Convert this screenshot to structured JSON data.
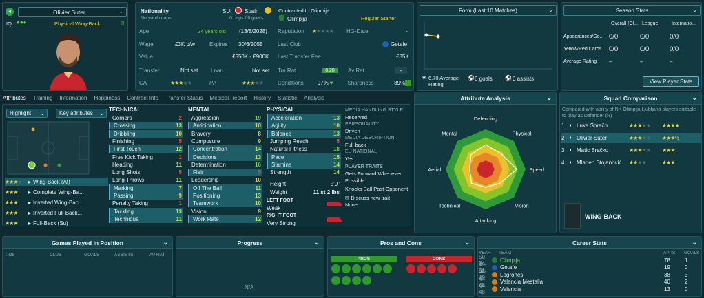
{
  "player": {
    "name": "Olivier Suter",
    "iq": "IQ:",
    "role": "Physical Wing-Back"
  },
  "info": {
    "nationality_label": "Nationality",
    "nationality_val": "SUI",
    "nationality_val2": "Spain",
    "caps": "No youth caps",
    "caps2": "0 caps / 0 goals",
    "contracted_label": "Contracted to Olimpija",
    "club": "Olimpija",
    "status": "Regular Starter",
    "age_label": "Age",
    "age_val": "24 years old",
    "age_date": "(13/8/2028)",
    "reputation_label": "Reputation",
    "hg_label": "HG-Date",
    "hg_val": "-",
    "wage_label": "Wage",
    "wage_val": "£3K p/w",
    "expires_label": "Expires",
    "expires_val": "30/6/2055",
    "lastclub_label": "Last Club",
    "lastclub_val": "Getafe",
    "value_label": "Value",
    "value_val": "£550K - £900K",
    "fee_label": "Last Transfer Fee",
    "fee_val": "£85K",
    "transfer_label": "Transfer",
    "transfer_val": "Not set",
    "loan_label": "Loan",
    "loan_val": "Not set",
    "trmrat_label": "Trn Rat",
    "trmrat_val": "8.28",
    "avrat_label": "Av Rat",
    "avrat_val": "-",
    "ca_label": "CA",
    "pa_label": "PA",
    "cond_label": "Conditions",
    "cond_val": "97%",
    "sharp_label": "Sharpness",
    "sharp_val": "89%"
  },
  "form": {
    "title": "Form (Last 10 Matches)",
    "avg": "6.70 Average Rating",
    "goals": "0 goals",
    "assists": "0 assists"
  },
  "season": {
    "title": "Season Stats",
    "cols": [
      "Overall (Cl...",
      "League",
      "Internatio..."
    ],
    "rows": [
      {
        "label": "Appearances/Go...",
        "v": [
          "0/0",
          "0/0",
          "0/0"
        ]
      },
      {
        "label": "Yellow/Red Cards",
        "v": [
          "0/0",
          "0/0",
          "0/0"
        ]
      },
      {
        "label": "Average Rating",
        "v": [
          "–",
          "–",
          "–"
        ]
      }
    ],
    "button": "View Player Stats"
  },
  "tabs": [
    "Attributes",
    "Training",
    "Information",
    "Happiness",
    "Contract Info",
    "Transfer Status",
    "Medical Report",
    "History",
    "Statistic",
    "Analysis"
  ],
  "left": {
    "highlight": "Highlight",
    "keyattr": "Key attributes",
    "roles": [
      {
        "name": "Wing-Back (At)"
      },
      {
        "name": "Complete Wing-Ba..."
      },
      {
        "name": "Inverted Wing-Bac..."
      },
      {
        "name": "Inverted Full-Back..."
      },
      {
        "name": "Full-Back (Su)"
      }
    ]
  },
  "technical": {
    "title": "TECHNICAL",
    "items": [
      [
        "Corners",
        "2"
      ],
      [
        "Crossing",
        "13"
      ],
      [
        "Dribbling",
        "10"
      ],
      [
        "Finishing",
        "5"
      ],
      [
        "First Touch",
        "12"
      ],
      [
        "Free Kick Taking",
        "1"
      ],
      [
        "Heading",
        "11"
      ],
      [
        "Long Shots",
        "5"
      ],
      [
        "Long Throws",
        "11"
      ],
      [
        "Marking",
        "7"
      ],
      [
        "Passing",
        "9"
      ],
      [
        "Penalty Taking",
        "1"
      ],
      [
        "Tackling",
        "13"
      ],
      [
        "Technique",
        "11"
      ]
    ]
  },
  "mental": {
    "title": "MENTAL",
    "items": [
      [
        "Aggression",
        "19"
      ],
      [
        "Anticipation",
        "10"
      ],
      [
        "Bravery",
        "8"
      ],
      [
        "Composure",
        "9"
      ],
      [
        "Concentration",
        "14"
      ],
      [
        "Decisions",
        "13"
      ],
      [
        "Determination",
        "16"
      ],
      [
        "Flair",
        "5"
      ],
      [
        "Leadership",
        "10"
      ],
      [
        "Off The Ball",
        "11"
      ],
      [
        "Positioning",
        "13"
      ],
      [
        "Teamwork",
        "10"
      ],
      [
        "Vision",
        "9"
      ],
      [
        "Work Rate",
        "12"
      ]
    ]
  },
  "physical": {
    "title": "PHYSICAL",
    "items": [
      [
        "Acceleration",
        "13"
      ],
      [
        "Agility",
        "10"
      ],
      [
        "Balance",
        "13"
      ],
      [
        "Jumping Reach",
        "5"
      ],
      [
        "Natural Fitness",
        "18"
      ],
      [
        "Pace",
        "15"
      ],
      [
        "Stamina",
        "14"
      ],
      [
        "Strength",
        "14"
      ]
    ],
    "height_label": "Height",
    "height_val": "5'9\"",
    "weight_label": "Weight",
    "weight_val": "11 st 2 lbs",
    "leftfoot_label": "LEFT FOOT",
    "leftfoot_val": "Weak",
    "rightfoot_label": "RIGHT FOOT",
    "rightfoot_val": "Very Strong"
  },
  "media": {
    "style_label": "MEDIA HANDLING STYLE",
    "style_val": "Reserved",
    "pers_label": "PERSONALITY",
    "pers_val": "Driven",
    "desc_label": "MEDIA DESCRIPTION",
    "desc_val": "Full-back",
    "eu_label": "EU NATIONAL",
    "eu_val": "Yes",
    "traits_label": "PLAYER TRAITS",
    "traits": [
      "Gets Forward Whenever Possible",
      "Knocks Ball Past Opponent"
    ],
    "discuss": "Discuss new trait",
    "none": "None"
  },
  "analysis": {
    "title": "Attribute Analysis",
    "axes": [
      "Defending",
      "Physical",
      "Speed",
      "Vision",
      "Attacking",
      "Technical",
      "Aerial",
      "Mental"
    ],
    "values": [
      0.62,
      0.55,
      0.78,
      0.5,
      0.45,
      0.5,
      0.4,
      0.52
    ]
  },
  "squad": {
    "title": "Squad Comparison",
    "desc": "Compared with ability of NK Olimpija Ljubljana players suitable to play as Defender (R)",
    "rows": [
      {
        "rank": "1",
        "name": "Luka Sprečo"
      },
      {
        "rank": "2",
        "name": "Olivier Suter"
      },
      {
        "rank": "3",
        "name": "Matic Bračko"
      },
      {
        "rank": "4",
        "name": "Mladen Stojanović"
      }
    ],
    "pos": "WING-BACK"
  },
  "bottom": {
    "games": "Games Played In Position",
    "games_cols": [
      "POS",
      "CLUB",
      "GOALS",
      "ASSISTS",
      "AV RAT"
    ],
    "progress": "Progress",
    "na": "N/A",
    "proscons": "Pros and Cons",
    "pros": "PROS",
    "cons": "CONS",
    "career": "Career Stats",
    "career_cols": [
      "YEAR",
      "TEAM",
      "APPS",
      "GOALS"
    ],
    "career_rows": [
      [
        "50-54",
        "Olimpija",
        "78",
        "1"
      ],
      [
        "49-51",
        "Getafe",
        "19",
        "0"
      ],
      [
        "48-49",
        "Logroñés",
        "38",
        "3"
      ],
      [
        "44-48",
        "Valencia Mestalla",
        "40",
        "2"
      ],
      [
        "44-48",
        "Valencia",
        "13",
        "0"
      ]
    ]
  },
  "colors": {
    "accent": "#6fd33a",
    "star": "#e8d23d",
    "panel": "#123840"
  }
}
